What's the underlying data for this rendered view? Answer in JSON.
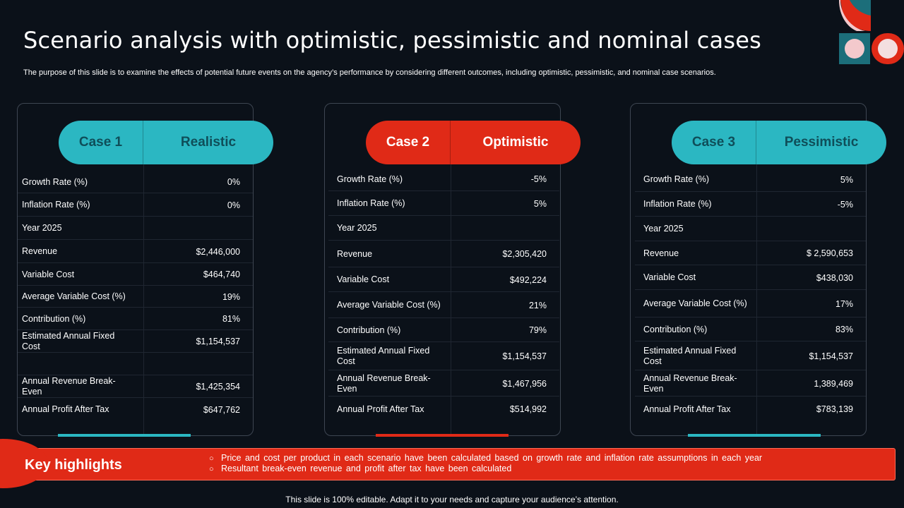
{
  "title": "Scenario analysis with optimistic, pessimistic and nominal cases",
  "subtitle": "The purpose of this slide is to examine the effects of potential future events on the agency’s performance by considering different outcomes, including optimistic, pessimistic, and nominal case scenarios.",
  "colors": {
    "teal": "#2bb7c2",
    "red": "#e02a17",
    "background": "#0b1119"
  },
  "cases": [
    {
      "case_label": "Case 1",
      "name": "Realistic",
      "rows": [
        {
          "label": "Growth Rate (%)",
          "value": "0%"
        },
        {
          "label": "Inflation Rate (%)",
          "value": "0%"
        },
        {
          "label": "Year 2025",
          "value": ""
        },
        {
          "label": "Revenue",
          "value": "$2,446,000"
        },
        {
          "label": "Variable Cost",
          "value": "$464,740"
        },
        {
          "label": "Average Variable Cost (%)",
          "value": "19%"
        },
        {
          "label": "Contribution (%)",
          "value": "81%"
        },
        {
          "label": "Estimated Annual Fixed Cost",
          "value": "$1,154,537"
        },
        {
          "label": "",
          "value": ""
        },
        {
          "label": "Annual Revenue Break-Even",
          "value": "$1,425,354"
        },
        {
          "label": "Annual Profit After Tax",
          "value": "$647,762"
        }
      ]
    },
    {
      "case_label": "Case 2",
      "name": "Optimistic",
      "rows": [
        {
          "label": "Growth Rate (%)",
          "value": "-5%"
        },
        {
          "label": "Inflation Rate (%)",
          "value": "5%"
        },
        {
          "label": "Year 2025",
          "value": ""
        },
        {
          "label": "Revenue",
          "value": "$2,305,420"
        },
        {
          "label": "Variable Cost",
          "value": "$492,224"
        },
        {
          "label": "Average Variable Cost (%)",
          "value": "21%"
        },
        {
          "label": "Contribution (%)",
          "value": "79%"
        },
        {
          "label": "Estimated Annual Fixed Cost",
          "value": "$1,154,537"
        },
        {
          "label": "Annual Revenue Break-Even",
          "value": "$1,467,956"
        },
        {
          "label": "Annual Profit After Tax",
          "value": "$514,992"
        }
      ]
    },
    {
      "case_label": "Case 3",
      "name": "Pessimistic",
      "rows": [
        {
          "label": "Growth Rate (%)",
          "value": "5%"
        },
        {
          "label": "Inflation Rate (%)",
          "value": "-5%"
        },
        {
          "label": "Year 2025",
          "value": ""
        },
        {
          "label": "Revenue",
          "value": "$ 2,590,653"
        },
        {
          "label": "Variable Cost",
          "value": "$438,030"
        },
        {
          "label": "Average Variable Cost (%)",
          "value": "17%"
        },
        {
          "label": "Contribution (%)",
          "value": "83%"
        },
        {
          "label": "Estimated Annual Fixed Cost",
          "value": "$1,154,537"
        },
        {
          "label": "Annual Revenue Break-Even",
          "value": "1,389,469"
        },
        {
          "label": "Annual Profit After Tax",
          "value": "$783,139"
        }
      ]
    }
  ],
  "key_highlights": {
    "label": "Key highlights",
    "items": [
      "Price and cost per product in each scenario have been calculated based on growth rate and inflation rate assumptions in each year",
      "Resultant break-even revenue and profit after tax have been calculated"
    ]
  },
  "footer": "This slide is 100% editable. Adapt it to your needs and capture your audience’s attention."
}
